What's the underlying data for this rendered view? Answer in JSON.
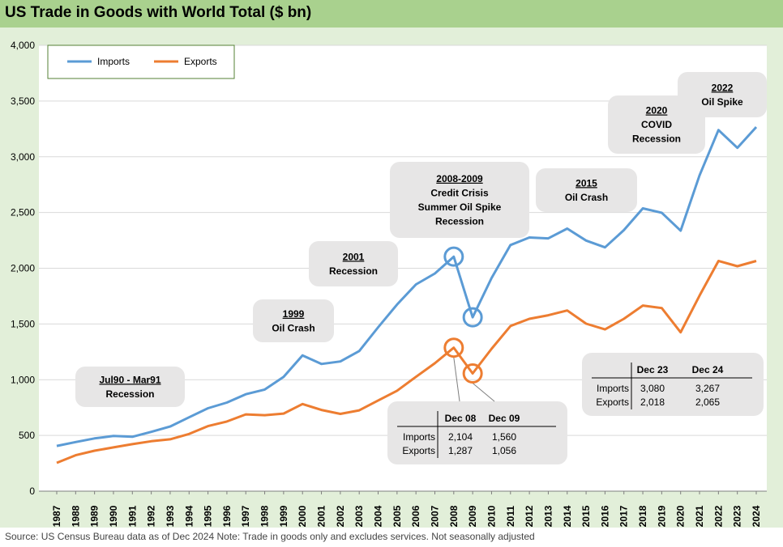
{
  "title": "US Trade in Goods with World Total ($ bn)",
  "source": "Source: US Census Bureau data as of Dec 2024 Note: Trade in goods only and excludes services. Not seasonally adjusted",
  "colors": {
    "imports": "#5b9bd5",
    "exports": "#ed7d31",
    "box": "#e7e6e6"
  },
  "chart_data": {
    "type": "line",
    "title": "US Trade in Goods with World Total ($ bn)",
    "xlabel": "",
    "ylabel": "",
    "ylim": [
      0,
      4000
    ],
    "yticks": [
      0,
      500,
      1000,
      1500,
      2000,
      2500,
      3000,
      3500,
      4000
    ],
    "ytick_labels": [
      "0",
      "500",
      "1,000",
      "1,500",
      "2,000",
      "2,500",
      "3,000",
      "3,500",
      "4,000"
    ],
    "grid": true,
    "legend": "top-left",
    "x": [
      1987,
      1988,
      1989,
      1990,
      1991,
      1992,
      1993,
      1994,
      1995,
      1996,
      1997,
      1998,
      1999,
      2000,
      2001,
      2002,
      2003,
      2004,
      2005,
      2006,
      2007,
      2008,
      2009,
      2010,
      2011,
      2012,
      2013,
      2014,
      2015,
      2016,
      2017,
      2018,
      2019,
      2020,
      2021,
      2022,
      2023,
      2024
    ],
    "series": [
      {
        "name": "Imports",
        "color": "#5b9bd5",
        "values": [
          406,
          441,
          473,
          495,
          488,
          532,
          580,
          663,
          744,
          795,
          870,
          912,
          1025,
          1218,
          1141,
          1164,
          1257,
          1470,
          1674,
          1855,
          1953,
          2104,
          1560,
          1913,
          2208,
          2276,
          2268,
          2356,
          2248,
          2187,
          2342,
          2537,
          2498,
          2337,
          2833,
          3240,
          3080,
          3267
        ]
      },
      {
        "name": "Exports",
        "color": "#ed7d31",
        "values": [
          254,
          322,
          363,
          393,
          422,
          448,
          465,
          513,
          584,
          625,
          689,
          682,
          696,
          782,
          729,
          693,
          725,
          814,
          901,
          1026,
          1148,
          1287,
          1056,
          1278,
          1482,
          1546,
          1578,
          1621,
          1503,
          1451,
          1546,
          1665,
          1643,
          1425,
          1754,
          2065,
          2018,
          2065
        ]
      }
    ],
    "annotations": [
      {
        "lines": [
          "Jul90 - Mar91",
          "Recession"
        ]
      },
      {
        "lines": [
          "1999",
          "Oil Crash"
        ]
      },
      {
        "lines": [
          "2001",
          "Recession"
        ]
      },
      {
        "lines": [
          "2008-2009",
          "Credit Crisis",
          "Summer Oil Spike",
          "Recession"
        ]
      },
      {
        "lines": [
          "2015",
          "Oil Crash"
        ]
      },
      {
        "lines": [
          "2020",
          "COVID",
          "Recession"
        ]
      },
      {
        "lines": [
          "2022",
          "Oil Spike"
        ]
      }
    ],
    "table_crisis": {
      "headers": [
        "Dec 08",
        "Dec 09"
      ],
      "rows": [
        {
          "label": "Imports",
          "values": [
            "2,104",
            "1,560"
          ]
        },
        {
          "label": "Exports",
          "values": [
            "1,287",
            "1,056"
          ]
        }
      ]
    },
    "table_recent": {
      "headers": [
        "Dec 23",
        "Dec 24"
      ],
      "rows": [
        {
          "label": "Imports",
          "values": [
            "3,080",
            "3,267"
          ]
        },
        {
          "label": "Exports",
          "values": [
            "2,018",
            "2,065"
          ]
        }
      ]
    }
  }
}
